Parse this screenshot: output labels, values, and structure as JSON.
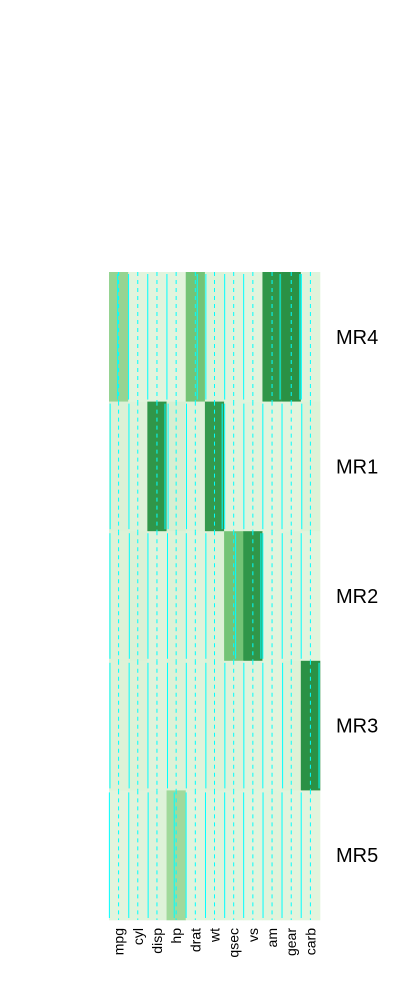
{
  "chart_data": {
    "type": "heatmap",
    "title": "",
    "xlabel": "",
    "ylabel": "",
    "columns": [
      "mpg",
      "cyl",
      "disp",
      "hp",
      "drat",
      "wt",
      "qsec",
      "vs",
      "am",
      "gear",
      "carb"
    ],
    "rows": [
      "MR4",
      "MR1",
      "MR2",
      "MR3",
      "MR5"
    ],
    "values": [
      [
        0.45,
        0.02,
        0.02,
        0.02,
        0.6,
        0.05,
        0.03,
        0.02,
        0.92,
        0.95,
        0.03
      ],
      [
        0.06,
        0.04,
        0.92,
        0.08,
        0.04,
        0.9,
        0.03,
        0.03,
        0.02,
        0.02,
        0.05
      ],
      [
        0.05,
        0.06,
        0.03,
        0.05,
        0.03,
        0.05,
        0.6,
        0.92,
        0.02,
        0.03,
        0.02
      ],
      [
        0.05,
        0.05,
        0.03,
        0.05,
        0.03,
        0.05,
        0.04,
        0.03,
        0.02,
        0.05,
        0.95
      ],
      [
        0.02,
        0.03,
        0.04,
        0.4,
        0.02,
        0.03,
        0.03,
        0.02,
        0.03,
        0.02,
        0.02
      ]
    ],
    "value_range": [
      0,
      1
    ],
    "grid": false,
    "legend": "none",
    "colors": {
      "low": "#e5f5e0",
      "mid_low": "#a1d99b",
      "mid_high": "#74c476",
      "high": "#1f8a3e",
      "trace_line": "#00ffff"
    }
  }
}
